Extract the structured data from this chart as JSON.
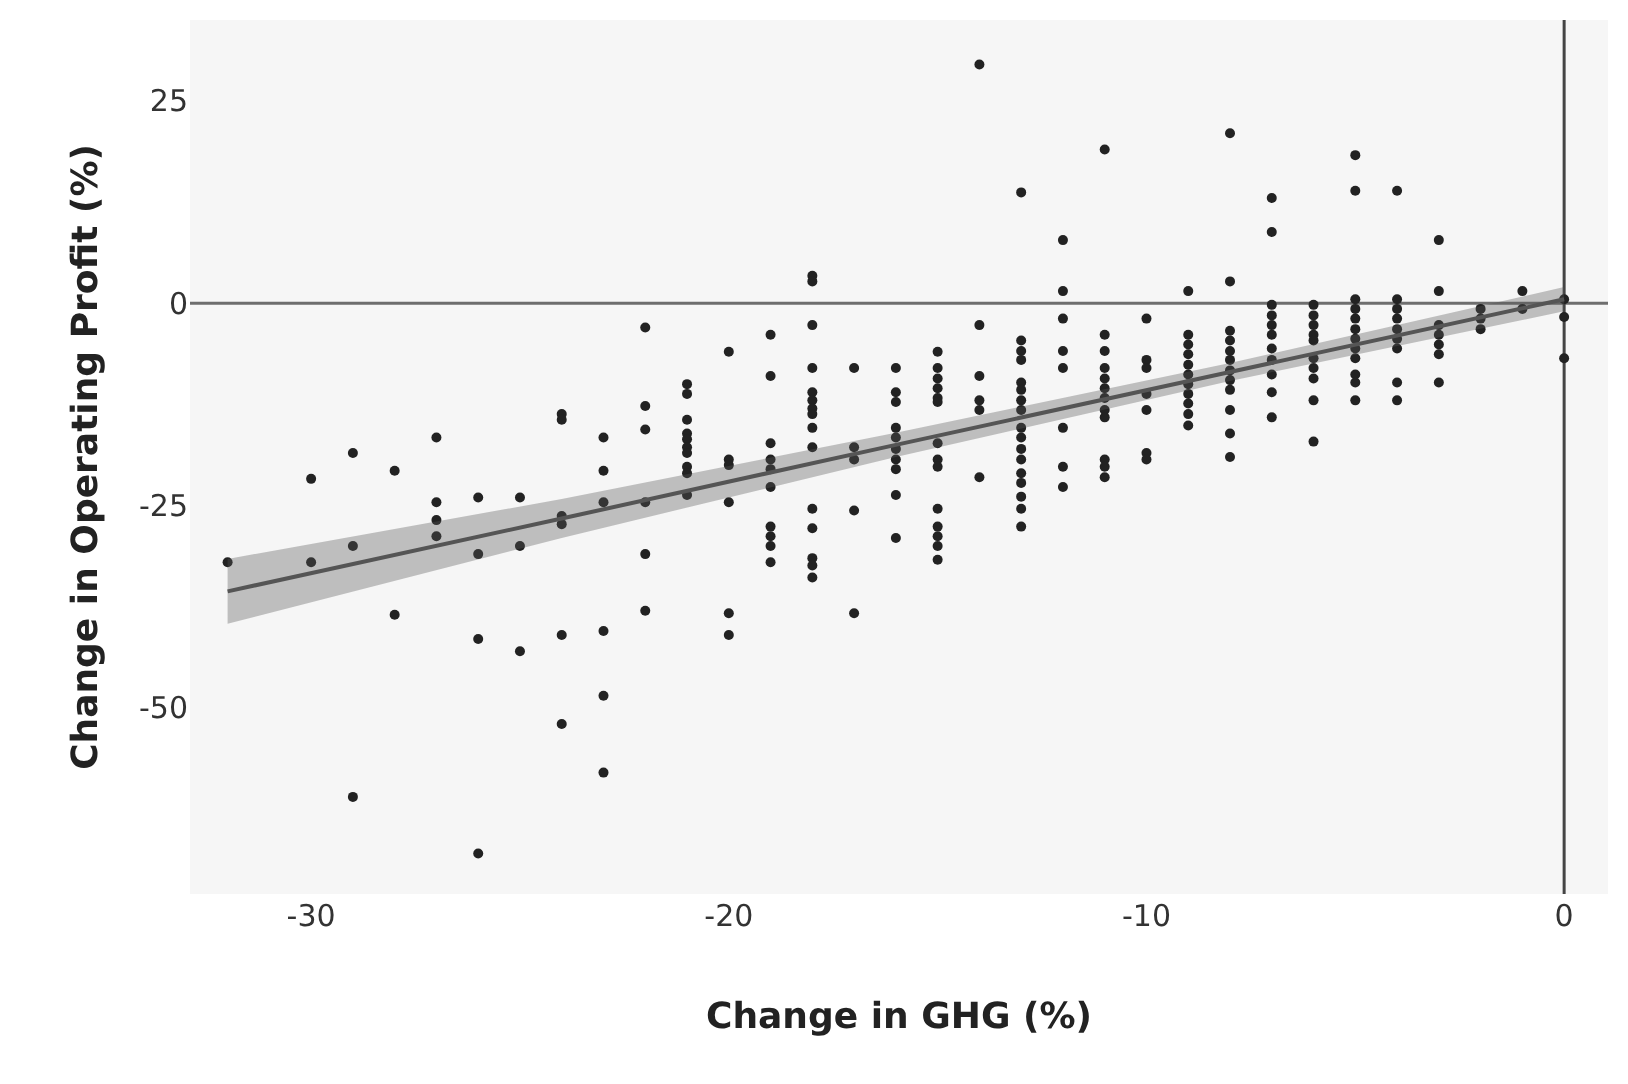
{
  "chart_data": {
    "type": "scatter",
    "xlabel": "Change in GHG (%)",
    "ylabel": "Change in Operating Profit (%)",
    "xlim": [
      -32.9,
      1.05
    ],
    "ylim": [
      -73,
      35
    ],
    "xticks": [
      -30,
      -20,
      -10,
      0
    ],
    "yticks": [
      -50,
      -25,
      0,
      25
    ],
    "grid": false,
    "ref_lines": [
      {
        "axis": "y",
        "value": 0,
        "color": "#6e6e6e"
      },
      {
        "axis": "x",
        "value": 0,
        "color": "#444444"
      }
    ],
    "series": [
      {
        "color": "#222222",
        "marker": "circle",
        "x": [
          -32,
          -30,
          -30,
          -29,
          -29,
          -29,
          -28,
          -28,
          -27,
          -27,
          -27,
          -27,
          -26,
          -26,
          -26,
          -26,
          -25,
          -25,
          -25,
          -24,
          -24,
          -24,
          -24,
          -24,
          -24,
          -23,
          -23,
          -23,
          -23,
          -23,
          -23,
          -22,
          -22,
          -22,
          -22,
          -22,
          -22,
          -21,
          -21,
          -21,
          -21,
          -21,
          -21,
          -21,
          -21,
          -21,
          -21,
          -20,
          -20,
          -20,
          -20,
          -20,
          -20,
          -19,
          -19,
          -19,
          -19,
          -19,
          -19,
          -19,
          -19,
          -19,
          -19,
          -18,
          -18,
          -18,
          -18,
          -18,
          -18,
          -18,
          -18,
          -18,
          -18,
          -18,
          -18,
          -18,
          -18,
          -18,
          -17,
          -17,
          -17,
          -17,
          -17,
          -16,
          -16,
          -16,
          -16,
          -16,
          -16,
          -16,
          -16,
          -16,
          -16,
          -15,
          -15,
          -15,
          -15,
          -15,
          -15,
          -15,
          -15,
          -15,
          -15,
          -15,
          -15,
          -15,
          -15,
          -14,
          -14,
          -14,
          -14,
          -14,
          -14,
          -13,
          -13,
          -13,
          -13,
          -13,
          -13,
          -13,
          -13,
          -13,
          -13,
          -13,
          -13,
          -13,
          -13,
          -13,
          -13,
          -13,
          -12,
          -12,
          -12,
          -12,
          -12,
          -12,
          -12,
          -12,
          -11,
          -11,
          -11,
          -11,
          -11,
          -11,
          -11,
          -11,
          -11,
          -11,
          -11,
          -11,
          -10,
          -10,
          -10,
          -10,
          -10,
          -10,
          -10,
          -9,
          -9,
          -9,
          -9,
          -9,
          -9,
          -9,
          -9,
          -9,
          -9,
          -9,
          -8,
          -8,
          -8,
          -8,
          -8,
          -8,
          -8,
          -8,
          -8,
          -8,
          -8,
          -8,
          -7,
          -7,
          -7,
          -7,
          -7,
          -7,
          -7,
          -7,
          -7,
          -7,
          -7,
          -6,
          -6,
          -6,
          -6,
          -6,
          -6,
          -6,
          -6,
          -6,
          -6,
          -5,
          -5,
          -5,
          -5,
          -5,
          -5,
          -5,
          -5,
          -5,
          -5,
          -5,
          -5,
          -4,
          -4,
          -4,
          -4,
          -4,
          -4,
          -4,
          -4,
          -4,
          -3,
          -3,
          -3,
          -3,
          -3,
          -3,
          -3,
          -2,
          -2,
          -2,
          -1,
          -1,
          0,
          0,
          0
        ],
        "values": [
          -32,
          -21.7,
          -32,
          -18.5,
          -30,
          -61,
          -20.7,
          -38.5,
          -16.6,
          -24.6,
          -26.8,
          -28.8,
          -24,
          -31,
          -41.5,
          -68,
          -24,
          -30,
          -43,
          -13.7,
          -14.4,
          -26.3,
          -27.3,
          -41,
          -52,
          -16.6,
          -20.7,
          -24.6,
          -40.5,
          -48.5,
          -58,
          -3,
          -12.7,
          -15.6,
          -24.6,
          -31,
          -38,
          -10,
          -11.2,
          -14.4,
          -16.1,
          -16.8,
          -17.8,
          -18.5,
          -20.2,
          -21,
          -23.7,
          -6,
          -19.3,
          -20,
          -24.6,
          -38.3,
          -41,
          -3.9,
          -9,
          -17.3,
          -19.3,
          -20.5,
          -22.7,
          -27.6,
          -28.8,
          -30,
          -32,
          3.4,
          2.7,
          -2.7,
          -8,
          -11,
          -12,
          -13,
          -13.7,
          -15.4,
          -17.8,
          -25.4,
          -27.8,
          -31.5,
          -32.4,
          -33.9,
          -8,
          -17.8,
          -19.3,
          -25.6,
          -38.3,
          -8,
          -11,
          -12.2,
          -15.4,
          -16.6,
          -18,
          -19.3,
          -20.5,
          -23.7,
          -29,
          -6,
          -8,
          -9.3,
          -10.5,
          -11.7,
          -12.2,
          -17.3,
          -19.3,
          -20.2,
          -25.4,
          -27.6,
          -28.8,
          -30,
          -31.7,
          29.5,
          -2.7,
          -9,
          -12,
          -13.2,
          -21.5,
          13.7,
          -4.6,
          -5.9,
          -7,
          -9.8,
          -10.7,
          -12,
          -13.2,
          -16.6,
          -18,
          -19.3,
          -21,
          -22.2,
          -23.9,
          -25.4,
          -27.6,
          -15.4,
          7.8,
          1.5,
          -1.9,
          -5.9,
          -8,
          -15.4,
          -20.2,
          -22.7,
          19,
          -3.9,
          -5.9,
          -8,
          -9.3,
          -10.5,
          -11.7,
          -13.2,
          -14.1,
          -19.3,
          -20.2,
          -21.5,
          -1.9,
          -7,
          -8,
          -11.2,
          -13.2,
          -18.5,
          -19.3,
          1.5,
          -3.9,
          -5.1,
          -6.3,
          -7.6,
          -8.8,
          -10,
          -11.2,
          -12.4,
          -13.7,
          -15.1,
          21,
          2.7,
          -3.4,
          -4.6,
          -5.9,
          -7,
          -8.3,
          -9.5,
          -10.7,
          -13.2,
          -16.1,
          -19,
          13,
          8.8,
          -0.2,
          -1.5,
          -2.7,
          -3.9,
          -5.6,
          -7,
          -8.8,
          -11,
          -14.1,
          -0.2,
          -1.5,
          -2.7,
          -3.9,
          -4.6,
          -6.8,
          -8,
          -9.3,
          -12,
          -17.1,
          18.3,
          13.9,
          0.5,
          -0.7,
          -1.9,
          -3.2,
          -4.4,
          -5.6,
          -6.8,
          -8.8,
          -9.8,
          -12,
          13.9,
          0.5,
          -0.7,
          -1.9,
          -3.2,
          -4.4,
          -5.6,
          -9.8,
          -12,
          7.8,
          1.5,
          -2.7,
          -3.9,
          -5.1,
          -6.3,
          -9.8,
          -0.7,
          -1.9,
          -3.2,
          1.5,
          -0.7,
          0.5,
          -1.7,
          -6.8
        ]
      },
      {
        "type": "line",
        "color": "#555555",
        "line_style": "solid",
        "marker": "none",
        "x": [
          -32,
          -24,
          -16,
          -8,
          0
        ],
        "values": [
          -35.6,
          -26.6,
          -17.5,
          -8.5,
          0.5
        ],
        "lower": [
          -39.6,
          -29,
          -19,
          -9.6,
          -1
        ],
        "upper": [
          -31.6,
          -24.2,
          -16,
          -7.4,
          2
        ]
      }
    ]
  }
}
